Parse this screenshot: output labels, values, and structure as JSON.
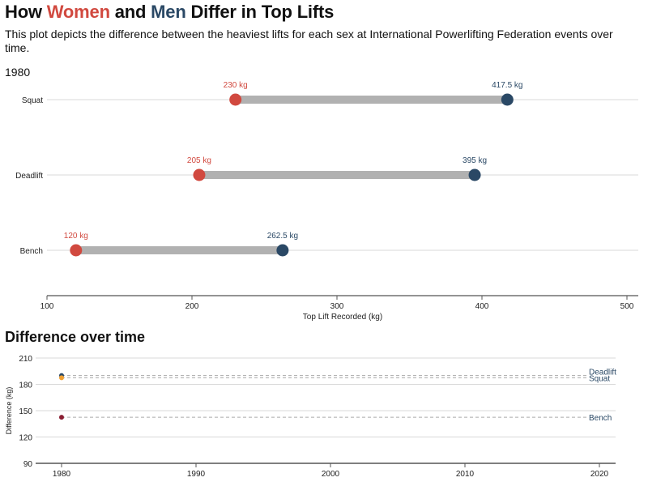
{
  "header": {
    "title_parts": [
      "How ",
      "Women",
      " and ",
      "Men",
      " Differ in Top Lifts"
    ],
    "subtitle": "This plot depicts the difference between the heaviest lifts for each sex at International Powerlifting Federation events over time.",
    "year": "1980",
    "section_title": "Difference over time"
  },
  "colors": {
    "women": "#d1493f",
    "men": "#2a4865",
    "connector": "#b1b1b1",
    "grid": "#d9d9d9",
    "axis": "#555555",
    "deadlift": "#2a4865",
    "squat": "#f0a032",
    "bench": "#8a1f33"
  },
  "chart_data": [
    {
      "type": "dumbbell",
      "title": "1980",
      "categories": [
        "Squat",
        "Deadlift",
        "Bench"
      ],
      "series": [
        {
          "name": "Women",
          "values": [
            230,
            205,
            120
          ],
          "labels": [
            "230 kg",
            "205 kg",
            "120 kg"
          ]
        },
        {
          "name": "Men",
          "values": [
            417.5,
            395,
            262.5
          ],
          "labels": [
            "417.5 kg",
            "395 kg",
            "262.5 kg"
          ]
        }
      ],
      "xlabel": "Top Lift Recorded (kg)",
      "xlim": [
        100,
        510
      ],
      "xticks": [
        100,
        200,
        300,
        400,
        500
      ],
      "grid": "horizontal"
    },
    {
      "type": "scatter",
      "title": "Difference over time",
      "ylabel": "Difference (kg)",
      "xlim": [
        1979,
        2021
      ],
      "ylim": [
        90,
        210
      ],
      "xticks": [
        1980,
        1990,
        2000,
        2010,
        2020
      ],
      "yticks": [
        90,
        120,
        150,
        180,
        210
      ],
      "series": [
        {
          "name": "Deadlift",
          "x": [
            1980
          ],
          "y": [
            190
          ]
        },
        {
          "name": "Squat",
          "x": [
            1980
          ],
          "y": [
            187.5
          ]
        },
        {
          "name": "Bench",
          "x": [
            1980
          ],
          "y": [
            142.5
          ]
        }
      ],
      "grid": "horizontal"
    }
  ]
}
